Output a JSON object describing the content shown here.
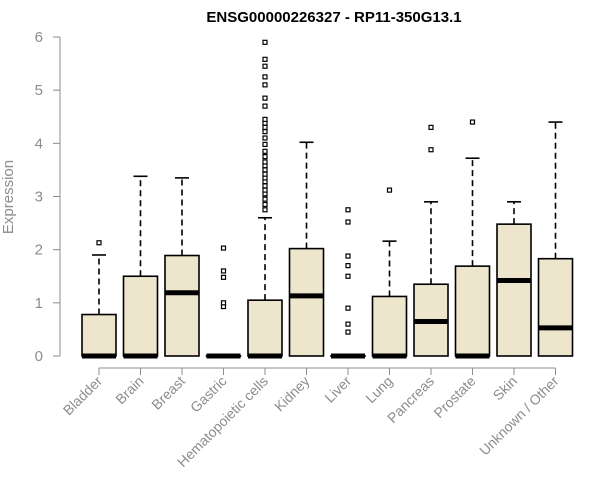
{
  "chart_data": {
    "type": "boxplot",
    "title": "ENSG00000226327 - RP11-350G13.1",
    "ylabel": "Expression",
    "xlabel": "",
    "ylim": [
      0,
      6
    ],
    "yticks": [
      0,
      1,
      2,
      3,
      4,
      5,
      6
    ],
    "box_fill": "#ede6cc",
    "stroke": "#000000",
    "axis_color": "#8c8c8c",
    "categories": [
      "Bladder",
      "Brain",
      "Breast",
      "Gastric",
      "Hematopoietic cells",
      "Kidney",
      "Liver",
      "Lung",
      "Pancreas",
      "Prostate",
      "Skin",
      "Unknown / Other"
    ],
    "boxes": [
      {
        "name": "Bladder",
        "lower_whisker": 0,
        "q1": 0,
        "median": 0,
        "q3": 0.78,
        "upper_whisker": 1.9,
        "outliers": [
          2.13
        ]
      },
      {
        "name": "Brain",
        "lower_whisker": 0,
        "q1": 0,
        "median": 0,
        "q3": 1.5,
        "upper_whisker": 3.38,
        "outliers": []
      },
      {
        "name": "Breast",
        "lower_whisker": 0,
        "q1": 0,
        "median": 1.19,
        "q3": 1.89,
        "upper_whisker": 3.35,
        "outliers": []
      },
      {
        "name": "Gastric",
        "lower_whisker": 0,
        "q1": 0,
        "median": 0,
        "q3": 0,
        "upper_whisker": 0,
        "outliers": [
          0.93,
          1.0,
          1.48,
          1.6,
          2.03
        ]
      },
      {
        "name": "Hematopoietic cells",
        "lower_whisker": 0,
        "q1": 0,
        "median": 0,
        "q3": 1.05,
        "upper_whisker": 2.6,
        "outliers": [
          2.75,
          2.85,
          2.95,
          3.05,
          3.12,
          3.2,
          3.28,
          3.35,
          3.42,
          3.5,
          3.58,
          3.65,
          3.75,
          3.85,
          3.98,
          4.1,
          4.22,
          4.3,
          4.38,
          4.45,
          4.7,
          4.85,
          5.1,
          5.25,
          5.45,
          5.58,
          5.9
        ]
      },
      {
        "name": "Kidney",
        "lower_whisker": 0,
        "q1": 0,
        "median": 1.13,
        "q3": 2.02,
        "upper_whisker": 4.02,
        "outliers": []
      },
      {
        "name": "Liver",
        "lower_whisker": 0,
        "q1": 0,
        "median": 0,
        "q3": 0,
        "upper_whisker": 0,
        "outliers": [
          0.45,
          0.6,
          0.9,
          1.5,
          1.7,
          1.88,
          2.52,
          2.75
        ]
      },
      {
        "name": "Lung",
        "lower_whisker": 0,
        "q1": 0,
        "median": 0,
        "q3": 1.12,
        "upper_whisker": 2.16,
        "outliers": [
          3.12
        ]
      },
      {
        "name": "Pancreas",
        "lower_whisker": 0,
        "q1": 0,
        "median": 0.65,
        "q3": 1.35,
        "upper_whisker": 2.9,
        "outliers": [
          3.88,
          4.3
        ]
      },
      {
        "name": "Prostate",
        "lower_whisker": 0,
        "q1": 0,
        "median": 0,
        "q3": 1.69,
        "upper_whisker": 3.72,
        "outliers": [
          4.4
        ]
      },
      {
        "name": "Skin",
        "lower_whisker": 0,
        "q1": 0,
        "median": 1.42,
        "q3": 2.48,
        "upper_whisker": 2.9,
        "outliers": []
      },
      {
        "name": "Unknown / Other",
        "lower_whisker": 0,
        "q1": 0,
        "median": 0.53,
        "q3": 1.83,
        "upper_whisker": 4.4,
        "outliers": []
      }
    ]
  }
}
